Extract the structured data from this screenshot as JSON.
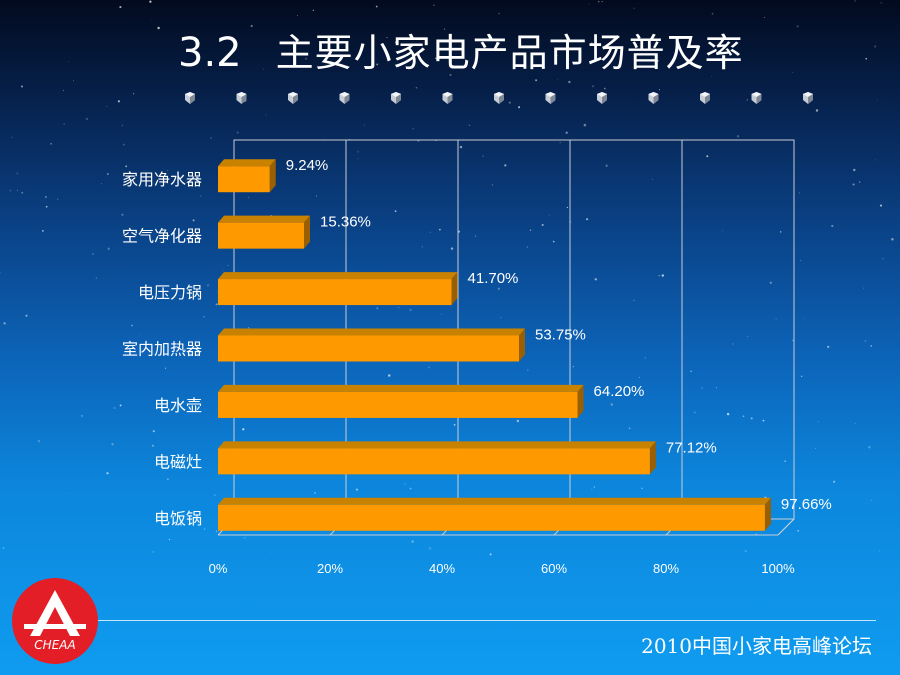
{
  "slide": {
    "number": "3.2",
    "title": "主要小家电产品市场普及率"
  },
  "footer": {
    "text": "2010中国小家电高峰论坛"
  },
  "logo": {
    "text": "CHEAA"
  },
  "colors": {
    "bar_front": "#FF9900",
    "bar_top": "#C88200",
    "bar_side": "#9A5F00",
    "grid": "#C8CCD6",
    "logo_red": "#E41E26"
  },
  "chart_data": {
    "type": "bar",
    "orientation": "horizontal",
    "categories": [
      "家用净水器",
      "空气净化器",
      "电压力锅",
      "室内加热器",
      "电水壶",
      "电磁灶",
      "电饭锅"
    ],
    "values": [
      9.24,
      15.36,
      41.7,
      53.75,
      64.2,
      77.12,
      97.66
    ],
    "value_labels": [
      "9.24%",
      "15.36%",
      "41.70%",
      "53.75%",
      "64.20%",
      "77.12%",
      "97.66%"
    ],
    "x_ticks": [
      "0%",
      "20%",
      "40%",
      "60%",
      "80%",
      "100%"
    ],
    "xlim": [
      0,
      100
    ],
    "grid": true,
    "legend": "none",
    "style": "3d"
  }
}
